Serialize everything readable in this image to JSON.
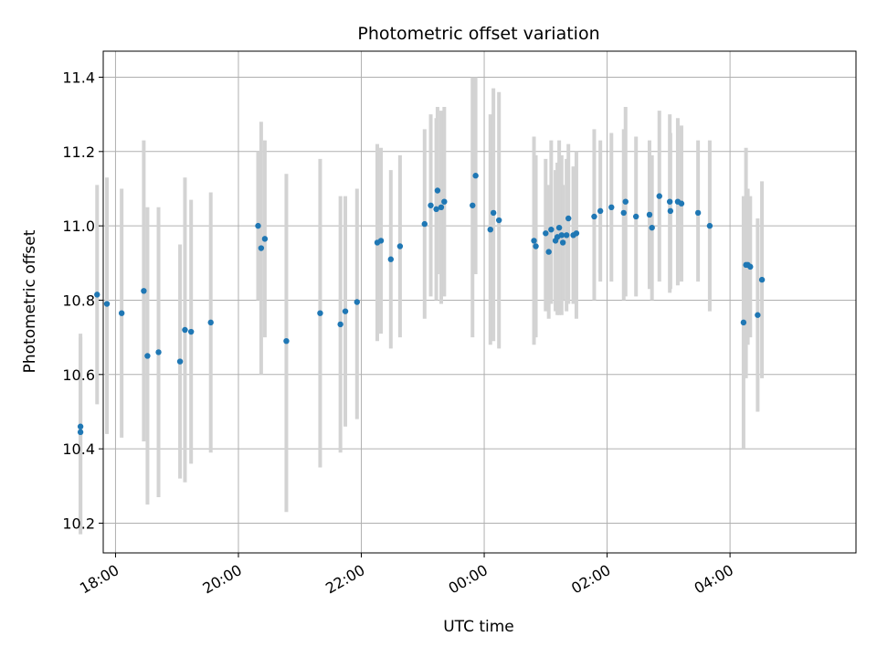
{
  "chart_data": {
    "type": "scatter",
    "title": "Photometric offset variation",
    "xlabel": "UTC time",
    "ylabel": "Photometric offset",
    "x_unit": "hours since 00:00 UTC",
    "xlim": [
      -6.2,
      6.05
    ],
    "ylim": [
      10.12,
      11.47
    ],
    "x_ticks": [
      {
        "value": -6,
        "label": "18:00"
      },
      {
        "value": -4,
        "label": "20:00"
      },
      {
        "value": -2,
        "label": "22:00"
      },
      {
        "value": 0,
        "label": "00:00"
      },
      {
        "value": 2,
        "label": "02:00"
      },
      {
        "value": 4,
        "label": "04:00"
      }
    ],
    "y_ticks": [
      {
        "value": 10.2,
        "label": "10.2"
      },
      {
        "value": 10.4,
        "label": "10.4"
      },
      {
        "value": 10.6,
        "label": "10.6"
      },
      {
        "value": 10.8,
        "label": "10.8"
      },
      {
        "value": 11.0,
        "label": "11.0"
      },
      {
        "value": 11.2,
        "label": "11.2"
      },
      {
        "value": 11.4,
        "label": "11.4"
      }
    ],
    "grid": true,
    "colors": {
      "point": "#1f77b4",
      "errorbar": "#d3d3d3",
      "grid": "#b0b0b0",
      "axis": "#000000"
    },
    "series": [
      {
        "name": "offset",
        "points": [
          {
            "x": -6.57,
            "y": 10.46,
            "lo": 10.17,
            "hi": 10.71
          },
          {
            "x": -6.57,
            "y": 10.445,
            "lo": 10.18,
            "hi": 10.7
          },
          {
            "x": -6.3,
            "y": 10.815,
            "lo": 10.52,
            "hi": 11.11
          },
          {
            "x": -6.14,
            "y": 10.79,
            "lo": 10.44,
            "hi": 11.13
          },
          {
            "x": -5.9,
            "y": 10.765,
            "lo": 10.43,
            "hi": 11.1
          },
          {
            "x": -5.54,
            "y": 10.825,
            "lo": 10.42,
            "hi": 11.23
          },
          {
            "x": -5.48,
            "y": 10.65,
            "lo": 10.25,
            "hi": 11.05
          },
          {
            "x": -5.3,
            "y": 10.66,
            "lo": 10.27,
            "hi": 11.05
          },
          {
            "x": -4.95,
            "y": 10.635,
            "lo": 10.32,
            "hi": 10.95
          },
          {
            "x": -4.87,
            "y": 10.72,
            "lo": 10.31,
            "hi": 11.13
          },
          {
            "x": -4.77,
            "y": 10.715,
            "lo": 10.36,
            "hi": 11.07
          },
          {
            "x": -4.45,
            "y": 10.74,
            "lo": 10.39,
            "hi": 11.09
          },
          {
            "x": -3.68,
            "y": 11.0,
            "lo": 10.8,
            "hi": 11.2
          },
          {
            "x": -3.63,
            "y": 10.94,
            "lo": 10.6,
            "hi": 11.28
          },
          {
            "x": -3.57,
            "y": 10.965,
            "lo": 10.7,
            "hi": 11.23
          },
          {
            "x": -3.22,
            "y": 10.69,
            "lo": 10.23,
            "hi": 11.14
          },
          {
            "x": -2.67,
            "y": 10.765,
            "lo": 10.35,
            "hi": 11.18
          },
          {
            "x": -2.34,
            "y": 10.735,
            "lo": 10.39,
            "hi": 11.08
          },
          {
            "x": -2.26,
            "y": 10.77,
            "lo": 10.46,
            "hi": 11.08
          },
          {
            "x": -2.07,
            "y": 10.795,
            "lo": 10.48,
            "hi": 11.1
          },
          {
            "x": -1.74,
            "y": 10.955,
            "lo": 10.69,
            "hi": 11.22
          },
          {
            "x": -1.68,
            "y": 10.96,
            "lo": 10.71,
            "hi": 11.21
          },
          {
            "x": -1.52,
            "y": 10.91,
            "lo": 10.67,
            "hi": 11.15
          },
          {
            "x": -1.37,
            "y": 10.945,
            "lo": 10.7,
            "hi": 11.19
          },
          {
            "x": -0.97,
            "y": 11.005,
            "lo": 10.75,
            "hi": 11.26
          },
          {
            "x": -0.87,
            "y": 11.055,
            "lo": 10.81,
            "hi": 11.3
          },
          {
            "x": -0.78,
            "y": 11.045,
            "lo": 10.8,
            "hi": 11.29
          },
          {
            "x": -0.76,
            "y": 11.095,
            "lo": 10.87,
            "hi": 11.32
          },
          {
            "x": -0.7,
            "y": 11.05,
            "lo": 10.79,
            "hi": 11.31
          },
          {
            "x": -0.65,
            "y": 11.065,
            "lo": 10.81,
            "hi": 11.32
          },
          {
            "x": -0.19,
            "y": 11.055,
            "lo": 10.7,
            "hi": 11.4
          },
          {
            "x": -0.14,
            "y": 11.135,
            "lo": 10.87,
            "hi": 11.4
          },
          {
            "x": 0.1,
            "y": 10.99,
            "lo": 10.68,
            "hi": 11.3
          },
          {
            "x": 0.15,
            "y": 11.035,
            "lo": 10.69,
            "hi": 11.37
          },
          {
            "x": 0.24,
            "y": 11.015,
            "lo": 10.67,
            "hi": 11.36
          },
          {
            "x": 0.81,
            "y": 10.96,
            "lo": 10.68,
            "hi": 11.24
          },
          {
            "x": 0.84,
            "y": 10.945,
            "lo": 10.7,
            "hi": 11.19
          },
          {
            "x": 1.0,
            "y": 10.98,
            "lo": 10.77,
            "hi": 11.18
          },
          {
            "x": 1.05,
            "y": 10.93,
            "lo": 10.75,
            "hi": 11.11
          },
          {
            "x": 1.09,
            "y": 10.99,
            "lo": 10.79,
            "hi": 11.23
          },
          {
            "x": 1.16,
            "y": 10.96,
            "lo": 10.77,
            "hi": 11.15
          },
          {
            "x": 1.19,
            "y": 10.97,
            "lo": 10.76,
            "hi": 11.17
          },
          {
            "x": 1.22,
            "y": 10.995,
            "lo": 10.76,
            "hi": 11.23
          },
          {
            "x": 1.26,
            "y": 10.975,
            "lo": 10.76,
            "hi": 11.19
          },
          {
            "x": 1.28,
            "y": 10.955,
            "lo": 10.8,
            "hi": 11.11
          },
          {
            "x": 1.34,
            "y": 10.975,
            "lo": 10.77,
            "hi": 11.18
          },
          {
            "x": 1.37,
            "y": 11.02,
            "lo": 10.79,
            "hi": 11.22
          },
          {
            "x": 1.45,
            "y": 10.975,
            "lo": 10.79,
            "hi": 11.16
          },
          {
            "x": 1.5,
            "y": 10.98,
            "lo": 10.75,
            "hi": 11.2
          },
          {
            "x": 1.79,
            "y": 11.025,
            "lo": 10.8,
            "hi": 11.26
          },
          {
            "x": 1.89,
            "y": 11.04,
            "lo": 10.85,
            "hi": 11.23
          },
          {
            "x": 2.07,
            "y": 11.05,
            "lo": 10.85,
            "hi": 11.25
          },
          {
            "x": 2.27,
            "y": 11.035,
            "lo": 10.8,
            "hi": 11.26
          },
          {
            "x": 2.3,
            "y": 11.065,
            "lo": 10.81,
            "hi": 11.32
          },
          {
            "x": 2.47,
            "y": 11.025,
            "lo": 10.81,
            "hi": 11.24
          },
          {
            "x": 2.69,
            "y": 11.03,
            "lo": 10.83,
            "hi": 11.23
          },
          {
            "x": 2.73,
            "y": 10.995,
            "lo": 10.8,
            "hi": 11.19
          },
          {
            "x": 2.85,
            "y": 11.08,
            "lo": 10.85,
            "hi": 11.31
          },
          {
            "x": 3.02,
            "y": 11.065,
            "lo": 10.82,
            "hi": 11.3
          },
          {
            "x": 3.03,
            "y": 11.04,
            "lo": 10.83,
            "hi": 11.25
          },
          {
            "x": 3.15,
            "y": 11.065,
            "lo": 10.84,
            "hi": 11.29
          },
          {
            "x": 3.21,
            "y": 11.06,
            "lo": 10.85,
            "hi": 11.27
          },
          {
            "x": 3.48,
            "y": 11.035,
            "lo": 10.85,
            "hi": 11.23
          },
          {
            "x": 3.67,
            "y": 11.0,
            "lo": 10.77,
            "hi": 11.23
          },
          {
            "x": 4.22,
            "y": 10.74,
            "lo": 10.4,
            "hi": 11.08
          },
          {
            "x": 4.26,
            "y": 10.895,
            "lo": 10.59,
            "hi": 11.21
          },
          {
            "x": 4.29,
            "y": 10.895,
            "lo": 10.68,
            "hi": 11.1
          },
          {
            "x": 4.33,
            "y": 10.89,
            "lo": 10.7,
            "hi": 11.08
          },
          {
            "x": 4.45,
            "y": 10.76,
            "lo": 10.5,
            "hi": 11.02
          },
          {
            "x": 4.52,
            "y": 10.855,
            "lo": 10.59,
            "hi": 11.12
          }
        ]
      }
    ]
  }
}
